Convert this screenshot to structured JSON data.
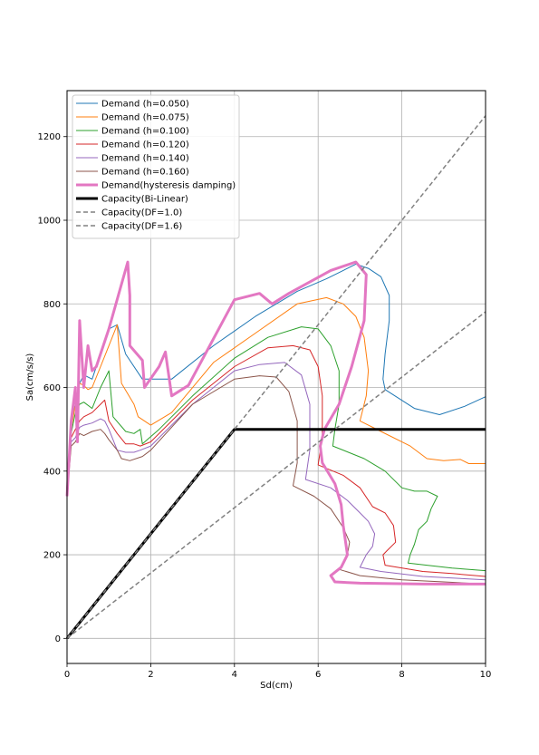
{
  "chart_data": {
    "type": "line",
    "title": "",
    "xlabel": "Sd(cm)",
    "ylabel": "Sa(cm/s/s)",
    "xlim": [
      0,
      10
    ],
    "ylim": [
      -60,
      1310
    ],
    "xticks": [
      0,
      2,
      4,
      6,
      8,
      10
    ],
    "yticks": [
      0,
      200,
      400,
      600,
      800,
      1000,
      1200
    ],
    "grid": true,
    "legend_position": "top-left",
    "series": [
      {
        "name": "Demand (h=0.050)",
        "color": "#1f77b4",
        "width": 1,
        "dash": "",
        "points": [
          [
            0,
            340
          ],
          [
            0.1,
            520
          ],
          [
            0.2,
            560
          ],
          [
            0.3,
            610
          ],
          [
            0.4,
            630
          ],
          [
            0.6,
            620
          ],
          [
            0.8,
            680
          ],
          [
            1.0,
            740
          ],
          [
            1.2,
            750
          ],
          [
            1.4,
            680
          ],
          [
            1.8,
            620
          ],
          [
            2.5,
            620
          ],
          [
            3.5,
            700
          ],
          [
            4.5,
            770
          ],
          [
            5.5,
            830
          ],
          [
            6.2,
            860
          ],
          [
            6.6,
            880
          ],
          [
            6.9,
            895
          ],
          [
            7.2,
            885
          ],
          [
            7.5,
            865
          ],
          [
            7.7,
            820
          ],
          [
            7.7,
            760
          ],
          [
            7.6,
            680
          ],
          [
            7.55,
            620
          ],
          [
            7.6,
            595
          ],
          [
            8.3,
            550
          ],
          [
            8.9,
            535
          ],
          [
            9.5,
            555
          ],
          [
            10,
            578
          ]
        ]
      },
      {
        "name": "Demand (h=0.075)",
        "color": "#ff7f0e",
        "width": 1,
        "dash": "",
        "points": [
          [
            0,
            340
          ],
          [
            0.1,
            500
          ],
          [
            0.2,
            560
          ],
          [
            0.3,
            610
          ],
          [
            0.4,
            605
          ],
          [
            0.5,
            595
          ],
          [
            0.6,
            600
          ],
          [
            0.8,
            650
          ],
          [
            1.0,
            700
          ],
          [
            1.2,
            750
          ],
          [
            1.3,
            610
          ],
          [
            1.6,
            560
          ],
          [
            1.7,
            530
          ],
          [
            2.0,
            510
          ],
          [
            2.5,
            540
          ],
          [
            3.5,
            660
          ],
          [
            4.5,
            730
          ],
          [
            5.5,
            800
          ],
          [
            6.2,
            815
          ],
          [
            6.6,
            800
          ],
          [
            6.9,
            770
          ],
          [
            7.1,
            720
          ],
          [
            7.2,
            640
          ],
          [
            7.15,
            580
          ],
          [
            7.0,
            520
          ],
          [
            7.5,
            495
          ],
          [
            8.2,
            460
          ],
          [
            8.6,
            430
          ],
          [
            9.0,
            425
          ],
          [
            9.4,
            428
          ],
          [
            9.6,
            418
          ],
          [
            10,
            418
          ]
        ]
      },
      {
        "name": "Demand (h=0.100)",
        "color": "#2ca02c",
        "width": 1,
        "dash": "",
        "points": [
          [
            0,
            340
          ],
          [
            0.1,
            490
          ],
          [
            0.2,
            540
          ],
          [
            0.3,
            560
          ],
          [
            0.4,
            565
          ],
          [
            0.6,
            550
          ],
          [
            0.8,
            600
          ],
          [
            1.0,
            640
          ],
          [
            1.1,
            530
          ],
          [
            1.4,
            495
          ],
          [
            1.6,
            490
          ],
          [
            1.75,
            500
          ],
          [
            1.8,
            465
          ],
          [
            2.2,
            500
          ],
          [
            3.0,
            580
          ],
          [
            4.0,
            670
          ],
          [
            4.8,
            720
          ],
          [
            5.6,
            745
          ],
          [
            6.0,
            740
          ],
          [
            6.3,
            700
          ],
          [
            6.5,
            640
          ],
          [
            6.5,
            560
          ],
          [
            6.4,
            500
          ],
          [
            6.35,
            460
          ],
          [
            7.1,
            430
          ],
          [
            7.6,
            400
          ],
          [
            8.0,
            360
          ],
          [
            8.3,
            352
          ],
          [
            8.6,
            352
          ],
          [
            8.85,
            340
          ],
          [
            8.7,
            310
          ],
          [
            8.6,
            280
          ],
          [
            8.4,
            260
          ],
          [
            8.3,
            225
          ],
          [
            8.2,
            200
          ],
          [
            8.15,
            180
          ],
          [
            8.6,
            175
          ],
          [
            9.2,
            168
          ],
          [
            10,
            162
          ]
        ]
      },
      {
        "name": "Demand (h=0.120)",
        "color": "#d62728",
        "width": 1,
        "dash": "",
        "points": [
          [
            0,
            340
          ],
          [
            0.1,
            480
          ],
          [
            0.2,
            500
          ],
          [
            0.3,
            520
          ],
          [
            0.4,
            530
          ],
          [
            0.6,
            540
          ],
          [
            0.8,
            560
          ],
          [
            0.9,
            570
          ],
          [
            1.0,
            520
          ],
          [
            1.2,
            490
          ],
          [
            1.4,
            465
          ],
          [
            1.6,
            465
          ],
          [
            1.75,
            460
          ],
          [
            2.0,
            470
          ],
          [
            3.0,
            570
          ],
          [
            4.0,
            650
          ],
          [
            4.8,
            695
          ],
          [
            5.4,
            700
          ],
          [
            5.8,
            690
          ],
          [
            6.0,
            650
          ],
          [
            6.1,
            580
          ],
          [
            6.1,
            480
          ],
          [
            6.0,
            415
          ],
          [
            6.6,
            390
          ],
          [
            7.0,
            360
          ],
          [
            7.3,
            315
          ],
          [
            7.6,
            300
          ],
          [
            7.8,
            270
          ],
          [
            7.85,
            230
          ],
          [
            7.65,
            210
          ],
          [
            7.55,
            200
          ],
          [
            7.6,
            175
          ],
          [
            8.5,
            160
          ],
          [
            9.2,
            155
          ],
          [
            10,
            148
          ]
        ]
      },
      {
        "name": "Demand (h=0.140)",
        "color": "#9467bd",
        "width": 1,
        "dash": "",
        "points": [
          [
            0,
            340
          ],
          [
            0.1,
            470
          ],
          [
            0.2,
            480
          ],
          [
            0.3,
            505
          ],
          [
            0.4,
            510
          ],
          [
            0.6,
            515
          ],
          [
            0.8,
            525
          ],
          [
            0.9,
            520
          ],
          [
            1.0,
            500
          ],
          [
            1.2,
            450
          ],
          [
            1.4,
            445
          ],
          [
            1.6,
            445
          ],
          [
            1.75,
            450
          ],
          [
            2.0,
            460
          ],
          [
            3.0,
            560
          ],
          [
            4.0,
            640
          ],
          [
            4.6,
            655
          ],
          [
            5.2,
            660
          ],
          [
            5.6,
            630
          ],
          [
            5.8,
            560
          ],
          [
            5.8,
            450
          ],
          [
            5.7,
            380
          ],
          [
            6.3,
            360
          ],
          [
            6.7,
            330
          ],
          [
            7.0,
            300
          ],
          [
            7.2,
            280
          ],
          [
            7.35,
            250
          ],
          [
            7.3,
            220
          ],
          [
            7.15,
            200
          ],
          [
            7.0,
            170
          ],
          [
            7.5,
            160
          ],
          [
            8.5,
            148
          ],
          [
            10,
            140
          ]
        ]
      },
      {
        "name": "Demand (h=0.160)",
        "color": "#8c564b",
        "width": 1,
        "dash": "",
        "points": [
          [
            0,
            340
          ],
          [
            0.1,
            460
          ],
          [
            0.2,
            470
          ],
          [
            0.3,
            490
          ],
          [
            0.4,
            485
          ],
          [
            0.6,
            495
          ],
          [
            0.8,
            500
          ],
          [
            0.9,
            490
          ],
          [
            1.0,
            475
          ],
          [
            1.2,
            450
          ],
          [
            1.3,
            430
          ],
          [
            1.5,
            425
          ],
          [
            1.8,
            435
          ],
          [
            2.0,
            450
          ],
          [
            3.0,
            560
          ],
          [
            4.0,
            620
          ],
          [
            4.6,
            628
          ],
          [
            5.0,
            625
          ],
          [
            5.3,
            590
          ],
          [
            5.5,
            520
          ],
          [
            5.5,
            420
          ],
          [
            5.4,
            365
          ],
          [
            5.9,
            340
          ],
          [
            6.3,
            310
          ],
          [
            6.6,
            265
          ],
          [
            6.75,
            230
          ],
          [
            6.7,
            200
          ],
          [
            6.5,
            165
          ],
          [
            7.0,
            150
          ],
          [
            8.0,
            140
          ],
          [
            9.0,
            135
          ],
          [
            10,
            130
          ]
        ]
      },
      {
        "name": "Demand(hysteresis damping)",
        "color": "#e377c2",
        "width": 3,
        "dash": "",
        "points": [
          [
            0,
            340
          ],
          [
            0.1,
            520
          ],
          [
            0.2,
            600
          ],
          [
            0.25,
            470
          ],
          [
            0.3,
            760
          ],
          [
            0.4,
            600
          ],
          [
            0.5,
            700
          ],
          [
            0.6,
            640
          ],
          [
            0.7,
            650
          ],
          [
            1.0,
            740
          ],
          [
            1.45,
            900
          ],
          [
            1.5,
            820
          ],
          [
            1.5,
            700
          ],
          [
            1.8,
            665
          ],
          [
            1.85,
            600
          ],
          [
            2.2,
            650
          ],
          [
            2.35,
            685
          ],
          [
            2.5,
            580
          ],
          [
            2.9,
            605
          ],
          [
            4.0,
            810
          ],
          [
            4.6,
            825
          ],
          [
            4.9,
            800
          ],
          [
            5.3,
            825
          ],
          [
            6.3,
            880
          ],
          [
            6.9,
            900
          ],
          [
            7.15,
            870
          ],
          [
            7.1,
            760
          ],
          [
            6.8,
            650
          ],
          [
            6.5,
            560
          ],
          [
            6.15,
            500
          ],
          [
            6.05,
            460
          ],
          [
            6.1,
            420
          ],
          [
            6.4,
            370
          ],
          [
            6.55,
            320
          ],
          [
            6.6,
            270
          ],
          [
            6.7,
            200
          ],
          [
            6.55,
            170
          ],
          [
            6.3,
            150
          ],
          [
            6.4,
            135
          ],
          [
            7.0,
            132
          ],
          [
            8.5,
            130
          ],
          [
            10,
            130
          ]
        ]
      },
      {
        "name": "Capacity(Bi-Linear)",
        "color": "#000000",
        "width": 3,
        "dash": "",
        "points": [
          [
            0,
            0
          ],
          [
            4,
            500
          ],
          [
            10,
            500
          ]
        ]
      },
      {
        "name": "Capacity(DF=1.0)",
        "color": "#808080",
        "width": 1.5,
        "dash": "5,3",
        "points": [
          [
            0,
            0
          ],
          [
            10,
            1250
          ]
        ]
      },
      {
        "name": "Capacity(DF=1.6)",
        "color": "#808080",
        "width": 1.5,
        "dash": "5,3",
        "points": [
          [
            0,
            0
          ],
          [
            10,
            781
          ]
        ]
      }
    ]
  }
}
